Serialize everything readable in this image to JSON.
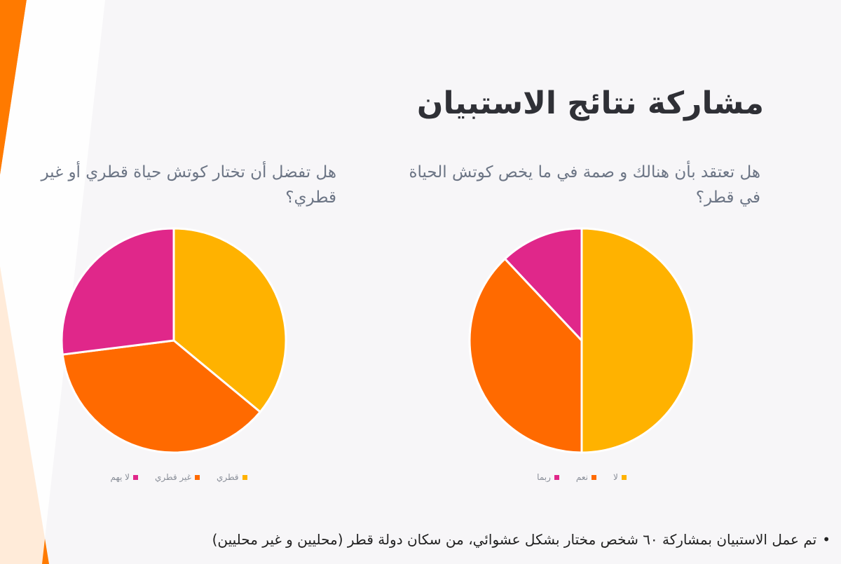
{
  "page": {
    "title": "مشاركة نتائج الاستبيان",
    "footnote": "تم عمل الاستبيان بمشاركة ٦٠ شخص مختار بشكل عشوائي، من سكان دولة قطر (محليين و غير محليين)",
    "footnote_bullet": "•"
  },
  "colors": {
    "yellow": "#FFB200",
    "orange": "#FF6A00",
    "magenta": "#E0278A",
    "decor_orange": "#FF7A00"
  },
  "chart_data": [
    {
      "type": "pie",
      "title": "هل تفضل أن تختار كوتش حياة قطري أو غير قطري؟",
      "categories": [
        "قطري",
        "غير قطري",
        "لا يهم"
      ],
      "values": [
        36,
        37,
        27
      ],
      "colors": [
        "#FFB200",
        "#FF6A00",
        "#E0278A"
      ],
      "legend": "bottom"
    },
    {
      "type": "pie",
      "title": "هل تعتقد بأن هنالك و صمة في ما يخص كوتش الحياة في قطر؟",
      "categories": [
        "لا",
        "نعم",
        "ربما"
      ],
      "values": [
        50,
        38,
        12
      ],
      "colors": [
        "#FFB200",
        "#FF6A00",
        "#E0278A"
      ],
      "legend": "bottom"
    }
  ]
}
